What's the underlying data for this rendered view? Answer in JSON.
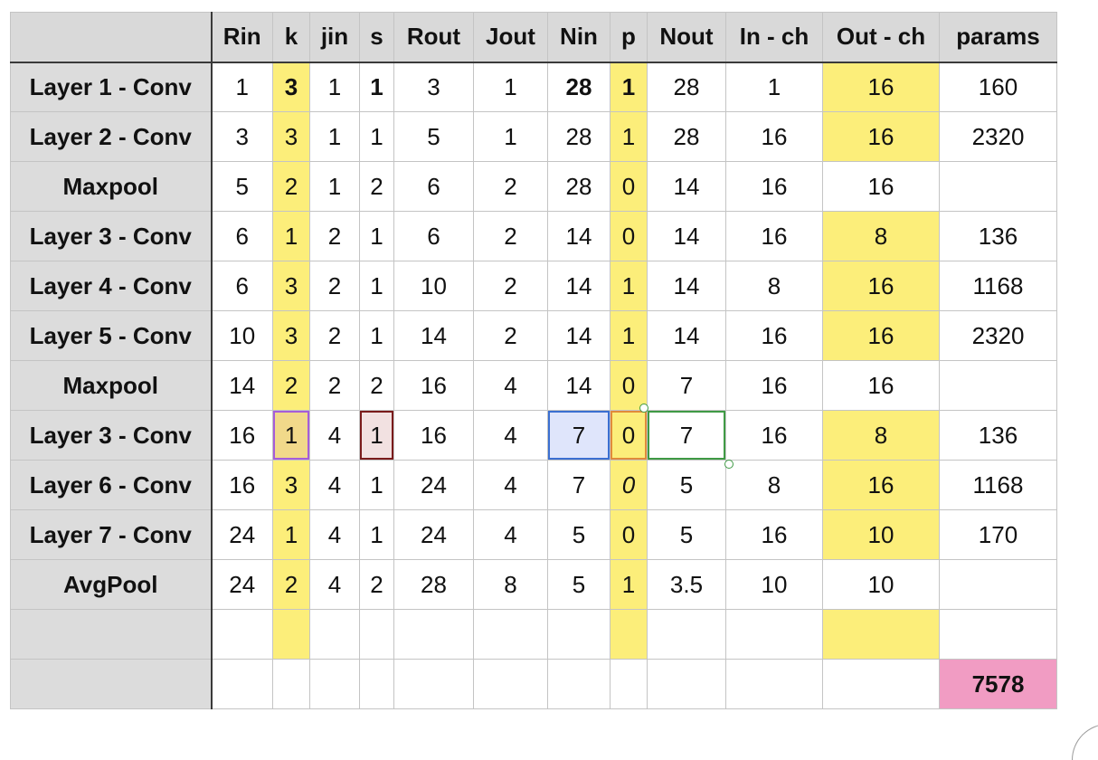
{
  "columns": [
    "",
    "Rin",
    "k",
    "jin",
    "s",
    "Rout",
    "Jout",
    "Nin",
    "p",
    "Nout",
    "In - ch",
    "Out - ch",
    "params"
  ],
  "rows": [
    {
      "label": "Layer 1  - Conv",
      "cells": [
        "1",
        "3",
        "1",
        "1",
        "3",
        "1",
        "28",
        "1",
        "28",
        "1",
        "16",
        "160"
      ]
    },
    {
      "label": "Layer 2 - Conv",
      "cells": [
        "3",
        "3",
        "1",
        "1",
        "5",
        "1",
        "28",
        "1",
        "28",
        "16",
        "16",
        "2320"
      ]
    },
    {
      "label": "Maxpool",
      "cells": [
        "5",
        "2",
        "1",
        "2",
        "6",
        "2",
        "28",
        "0",
        "14",
        "16",
        "16",
        ""
      ]
    },
    {
      "label": "Layer 3 - Conv",
      "cells": [
        "6",
        "1",
        "2",
        "1",
        "6",
        "2",
        "14",
        "0",
        "14",
        "16",
        "8",
        "136"
      ]
    },
    {
      "label": "Layer 4 - Conv",
      "cells": [
        "6",
        "3",
        "2",
        "1",
        "10",
        "2",
        "14",
        "1",
        "14",
        "8",
        "16",
        "1168"
      ]
    },
    {
      "label": "Layer 5 - Conv",
      "cells": [
        "10",
        "3",
        "2",
        "1",
        "14",
        "2",
        "14",
        "1",
        "14",
        "16",
        "16",
        "2320"
      ]
    },
    {
      "label": "Maxpool",
      "cells": [
        "14",
        "2",
        "2",
        "2",
        "16",
        "4",
        "14",
        "0",
        "7",
        "16",
        "16",
        ""
      ]
    },
    {
      "label": "Layer 3 - Conv",
      "cells": [
        "16",
        "1",
        "4",
        "1",
        "16",
        "4",
        "7",
        "0",
        "7",
        "16",
        "8",
        "136"
      ]
    },
    {
      "label": "Layer 6 - Conv",
      "cells": [
        "16",
        "3",
        "4",
        "1",
        "24",
        "4",
        "7",
        "0",
        "5",
        "8",
        "16",
        "1168"
      ]
    },
    {
      "label": "Layer 7 - Conv",
      "cells": [
        "24",
        "1",
        "4",
        "1",
        "24",
        "4",
        "5",
        "0",
        "5",
        "16",
        "10",
        "170"
      ]
    },
    {
      "label": "AvgPool",
      "cells": [
        "24",
        "2",
        "4",
        "2",
        "28",
        "8",
        "5",
        "1",
        "3.5",
        "10",
        "10",
        ""
      ]
    },
    {
      "label": "",
      "cells": [
        "",
        "",
        "",
        "",
        "",
        "",
        "",
        "",
        "",
        "",
        "",
        ""
      ]
    },
    {
      "label": "",
      "cells": [
        "",
        "",
        "",
        "",
        "",
        "",
        "",
        "",
        "",
        "",
        "",
        "7578"
      ]
    }
  ],
  "colors": {
    "highlight_yellow": "#fcee7a",
    "total_pink": "#f19cc3",
    "header_gray": "#d9d9d9",
    "selection_green": "#3f9a45",
    "selection_blue": "#3b6fd1",
    "selection_purple": "#a65dd8",
    "selection_maroon": "#7a1b1b"
  }
}
